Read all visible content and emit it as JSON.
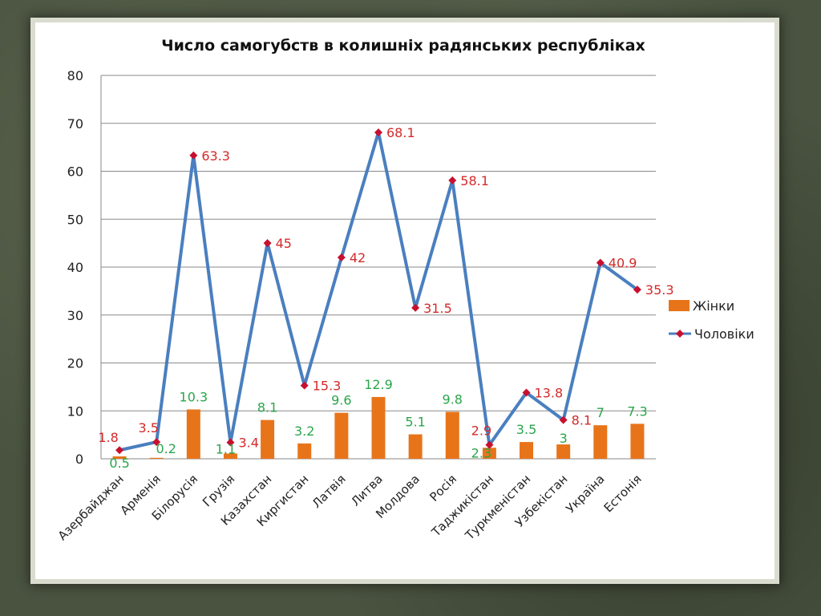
{
  "chart_data": {
    "type": "bar+line",
    "title": "Число самогубств в колишніх радянських республіках",
    "categories": [
      "Азербайджан",
      "Арменія",
      "Білорусія",
      "Грузія",
      "Казахстан",
      "Киргистан",
      "Латвія",
      "Литва",
      "Молдова",
      "Росія",
      "Таджикістан",
      "Туркменістан",
      "Узбекістан",
      "Україна",
      "Естонія"
    ],
    "series": [
      {
        "name": "Жінки",
        "type": "bar",
        "values": [
          0.5,
          0.2,
          10.3,
          1.1,
          8.1,
          3.2,
          9.6,
          12.9,
          5.1,
          9.8,
          2.3,
          3.5,
          3,
          7,
          7.3
        ]
      },
      {
        "name": "Чоловіки",
        "type": "line",
        "values": [
          1.8,
          3.5,
          63.3,
          3.4,
          45,
          15.3,
          42,
          68.1,
          31.5,
          58.1,
          2.9,
          13.8,
          8.1,
          40.9,
          35.3
        ]
      }
    ],
    "ylim": [
      0,
      80
    ],
    "yticks": [
      0,
      10,
      20,
      30,
      40,
      50,
      60,
      70,
      80
    ],
    "grid": true,
    "legend_position": "right",
    "colors": {
      "women": "#e8741a",
      "men": "#4a7fbf",
      "men_marker": "#c8102e",
      "men_label": "#d42a2a",
      "women_label": "#2aa54a"
    }
  }
}
